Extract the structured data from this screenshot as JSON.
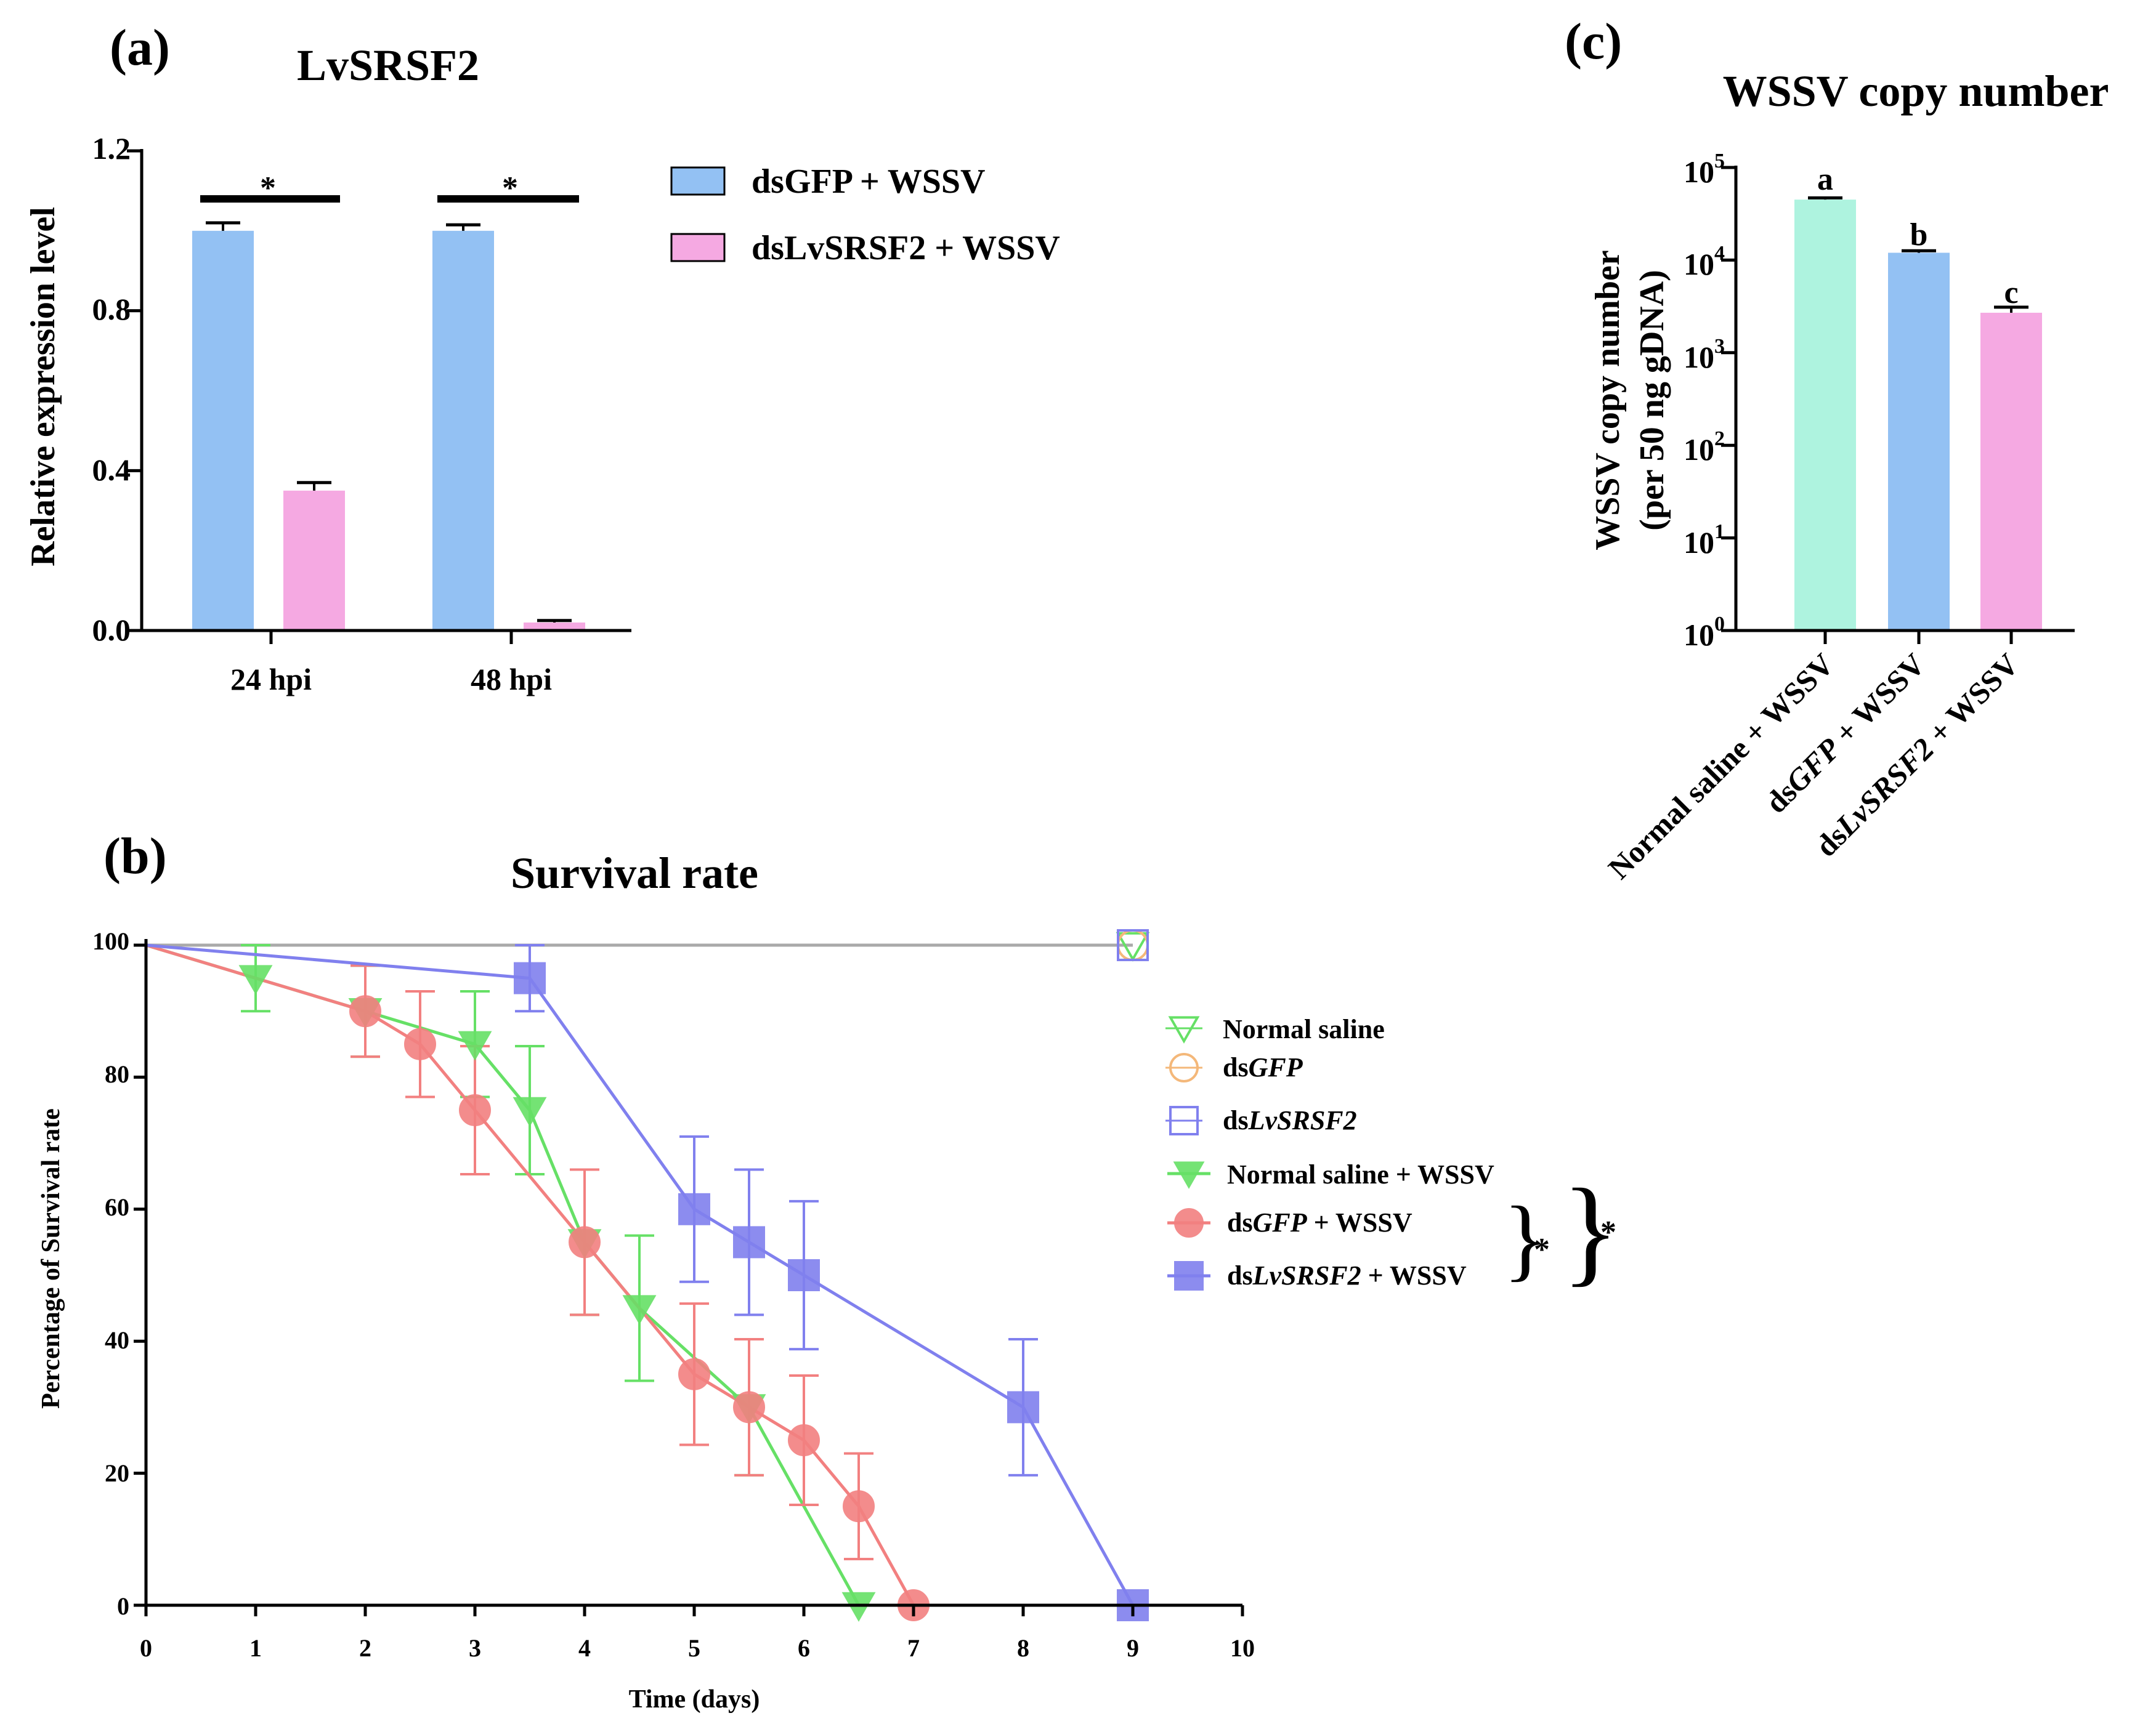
{
  "colors": {
    "blue_bar": "#93c1f3",
    "pink_bar": "#f5a9e2",
    "mint_bar": "#aef3df",
    "normal_saline": "#66e066",
    "dsgfp": "#f4b87a",
    "dslvsrsf2": "#8080ee",
    "normal_saline_wssv": "#66e066",
    "dsgfp_wssv": "#f28080",
    "dslvsrsf2_wssv": "#8080ee",
    "control_line": "#aaaaaa"
  },
  "chart_data": [
    {
      "id": "a",
      "panel_label": "(a)",
      "type": "bar",
      "title": "LvSRSF2",
      "xlabel": "",
      "ylabel": "Relative expression level",
      "ylim": [
        0,
        1.2
      ],
      "yticks": [
        "0.0",
        "0.4",
        "0.8",
        "1.2"
      ],
      "categories": [
        "24 hpi",
        "48 hpi"
      ],
      "series": [
        {
          "name": "dsGFP + WSSV",
          "values": [
            1.0,
            1.0
          ],
          "errors": [
            0.02,
            0.015
          ]
        },
        {
          "name": "dsLvSRSF2 + WSSV",
          "values": [
            0.35,
            0.02
          ],
          "errors": [
            0.02,
            0.005
          ]
        }
      ],
      "significance": [
        "*",
        "*"
      ],
      "legend": "top-right"
    },
    {
      "id": "c",
      "panel_label": "(c)",
      "type": "bar",
      "title": "WSSV copy number",
      "ylabel_line1": "WSSV copy number",
      "ylabel_line2": "(per 50 ng gDNA)",
      "yscale": "log",
      "ylim": [
        1,
        100000
      ],
      "yticks": [
        {
          "base": "10",
          "exp": "0"
        },
        {
          "base": "10",
          "exp": "1"
        },
        {
          "base": "10",
          "exp": "2"
        },
        {
          "base": "10",
          "exp": "3"
        },
        {
          "base": "10",
          "exp": "4"
        },
        {
          "base": "10",
          "exp": "5"
        }
      ],
      "categories": [
        {
          "pre": "Normal saline + WSSV",
          "ital": "",
          "post": ""
        },
        {
          "pre": "ds",
          "ital": "GFP",
          "post": " + WSSV"
        },
        {
          "pre": "ds",
          "ital": "LvSRSF2",
          "post": " + WSSV"
        }
      ],
      "values": [
        45000,
        12000,
        2700
      ],
      "errors": [
        2000,
        600,
        400
      ],
      "letters": [
        "a",
        "b",
        "c"
      ]
    },
    {
      "id": "b",
      "panel_label": "(b)",
      "type": "line",
      "title": "Survival rate",
      "xlabel": "Time (days)",
      "ylabel": "Percentage of Survival rate",
      "xlim": [
        0,
        10
      ],
      "ylim": [
        0,
        100
      ],
      "xticks": [
        "0",
        "1",
        "2",
        "3",
        "4",
        "5",
        "6",
        "7",
        "8",
        "9",
        "10"
      ],
      "yticks": [
        "0",
        "20",
        "40",
        "60",
        "80",
        "100"
      ],
      "series": [
        {
          "name": "Normal saline",
          "pre": "Normal saline",
          "ital": "",
          "post": "",
          "marker": "tri-open",
          "color_key": "normal_saline",
          "x": [
            0,
            9
          ],
          "y": [
            100,
            100
          ],
          "err": [
            0,
            0
          ],
          "showPoints": [
            false,
            true
          ]
        },
        {
          "name": "dsGFP",
          "pre": "ds",
          "ital": "GFP",
          "post": "",
          "marker": "circle-open",
          "color_key": "dsgfp",
          "x": [
            0,
            9
          ],
          "y": [
            100,
            100
          ],
          "err": [
            0,
            0
          ],
          "showPoints": [
            false,
            true
          ]
        },
        {
          "name": "dsLvSRSF2",
          "pre": "ds",
          "ital": "LvSRSF2",
          "post": "",
          "marker": "square-open",
          "color_key": "dslvsrsf2",
          "x": [
            0,
            9
          ],
          "y": [
            100,
            100
          ],
          "err": [
            0,
            0
          ],
          "showPoints": [
            false,
            true
          ]
        },
        {
          "name": "Normal saline + WSSV",
          "pre": "Normal saline + WSSV",
          "ital": "",
          "post": "",
          "marker": "tri-filled",
          "color_key": "normal_saline_wssv",
          "x": [
            0,
            1,
            2,
            3,
            3.5,
            4,
            4.5,
            5.5,
            6.5
          ],
          "y": [
            100,
            95,
            90,
            85,
            75,
            55,
            45,
            30,
            0
          ],
          "err": [
            0,
            5,
            6.9,
            8,
            9.7,
            11,
            11,
            10.3,
            0
          ],
          "showPoints": [
            false,
            true,
            true,
            true,
            true,
            true,
            true,
            true,
            true
          ]
        },
        {
          "name": "dsGFP + WSSV",
          "pre": "ds",
          "ital": "GFP",
          "post": " + WSSV",
          "marker": "circle-filled",
          "color_key": "dsgfp_wssv",
          "x": [
            0,
            2,
            2.5,
            3,
            4,
            5,
            5.5,
            6,
            6.5,
            7
          ],
          "y": [
            100,
            90,
            85,
            75,
            55,
            35,
            30,
            25,
            15,
            0
          ],
          "err": [
            0,
            6.9,
            8,
            9.7,
            11,
            10.7,
            10.3,
            9.8,
            8,
            0
          ],
          "showPoints": [
            false,
            true,
            true,
            true,
            true,
            true,
            true,
            true,
            true,
            true
          ]
        },
        {
          "name": "dsLvSRSF2 + WSSV",
          "pre": "ds",
          "ital": "LvSRSF2",
          "post": " + WSSV",
          "marker": "square-filled",
          "color_key": "dslvsrsf2_wssv",
          "x": [
            0,
            3.5,
            5,
            5.5,
            6,
            8,
            9
          ],
          "y": [
            100,
            95,
            60,
            55,
            50,
            30,
            0
          ],
          "err": [
            0,
            5,
            11,
            11,
            11.2,
            10.3,
            0
          ],
          "showPoints": [
            false,
            true,
            true,
            true,
            true,
            true,
            true
          ]
        }
      ],
      "significance": [
        "*",
        "*"
      ],
      "legend": "right"
    }
  ]
}
